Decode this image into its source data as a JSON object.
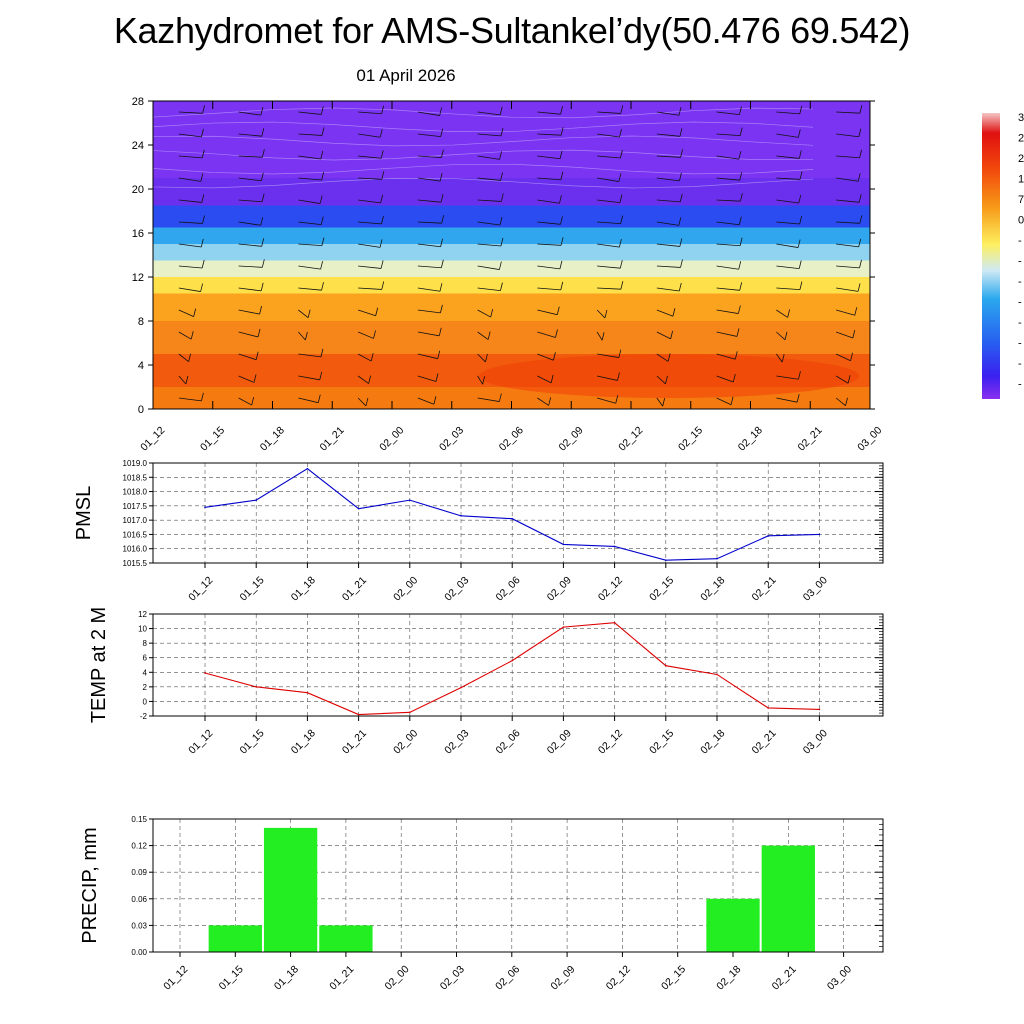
{
  "title": "Kazhydromet for AMS-Sultankel’dy(50.476 69.542)",
  "subtitle": "01 April 2026",
  "time_labels": [
    "01_12",
    "01_15",
    "01_18",
    "01_21",
    "02_00",
    "02_03",
    "02_06",
    "02_09",
    "02_12",
    "02_15",
    "02_18",
    "02_21",
    "03_00"
  ],
  "colors": {
    "pmsl_line": "#0000cc",
    "temp_line": "#dd0000",
    "precip_bar": "#22ee22"
  },
  "chart_data": [
    {
      "type": "heatmap",
      "title": "Vertical profile with wind barbs",
      "xlabel": "",
      "ylabel": "",
      "x": [
        "01_12",
        "01_15",
        "01_18",
        "01_21",
        "02_00",
        "02_03",
        "02_06",
        "02_09",
        "02_12",
        "02_15",
        "02_18",
        "02_21",
        "03_00"
      ],
      "y_ticks": [
        0,
        4,
        8,
        12,
        16,
        20,
        24,
        28
      ],
      "ylim": [
        0,
        28
      ],
      "layers": [
        {
          "from": 0,
          "to": 2,
          "color": "#f57a10"
        },
        {
          "from": 2,
          "to": 5,
          "color": "#f25a0d"
        },
        {
          "from": 5,
          "to": 8,
          "color": "#f7861a"
        },
        {
          "from": 8,
          "to": 10.5,
          "color": "#fba21f"
        },
        {
          "from": 10.5,
          "to": 12,
          "color": "#fde04a"
        },
        {
          "from": 12,
          "to": 13.5,
          "color": "#e8f0c8"
        },
        {
          "from": 13.5,
          "to": 15,
          "color": "#8fd3f0"
        },
        {
          "from": 15,
          "to": 16.5,
          "color": "#2fa6ee"
        },
        {
          "from": 16.5,
          "to": 18.5,
          "color": "#2b4cf0"
        },
        {
          "from": 18.5,
          "to": 21,
          "color": "#6a30ee"
        },
        {
          "from": 21,
          "to": 28,
          "color": "#7b34f2"
        }
      ],
      "colorbar_labels": [
        "3",
        "2",
        "2",
        "1",
        "7",
        "0",
        "-",
        "-",
        "-",
        "-",
        "-",
        "-",
        "-",
        "-"
      ]
    },
    {
      "type": "line",
      "name": "pmsl",
      "title": "",
      "xlabel": "",
      "ylabel": "PMSL",
      "categories": [
        "01_12",
        "01_15",
        "01_18",
        "01_21",
        "02_00",
        "02_03",
        "02_06",
        "02_09",
        "02_12",
        "02_15",
        "02_18",
        "02_21",
        "03_00"
      ],
      "values": [
        1017.45,
        1017.7,
        1018.8,
        1017.4,
        1017.7,
        1017.15,
        1017.05,
        1016.15,
        1016.08,
        1015.6,
        1015.65,
        1016.45,
        1016.5
      ],
      "ylim": [
        1015.5,
        1019.0
      ],
      "y_ticks": [
        "1015.5",
        "1016.0",
        "1016.5",
        "1017.0",
        "1017.5",
        "1018.0",
        "1018.5",
        "1019.0"
      ]
    },
    {
      "type": "line",
      "name": "temp",
      "title": "",
      "xlabel": "",
      "ylabel": "TEMP at 2 M",
      "categories": [
        "01_12",
        "01_15",
        "01_18",
        "01_21",
        "02_00",
        "02_03",
        "02_06",
        "02_09",
        "02_12",
        "02_15",
        "02_18",
        "02_21",
        "03_00"
      ],
      "values": [
        3.9,
        2.0,
        1.2,
        -1.8,
        -1.5,
        1.9,
        5.6,
        10.2,
        10.8,
        4.9,
        3.7,
        -0.9,
        -1.1
      ],
      "ylim": [
        -2,
        12
      ],
      "y_ticks": [
        "-2",
        "0",
        "2",
        "4",
        "6",
        "8",
        "10",
        "12"
      ]
    },
    {
      "type": "bar",
      "name": "precip",
      "title": "",
      "xlabel": "",
      "ylabel": "PRECIP, mm",
      "categories": [
        "01_12",
        "01_15",
        "01_18",
        "01_21",
        "02_00",
        "02_03",
        "02_06",
        "02_09",
        "02_12",
        "02_15",
        "02_18",
        "02_21",
        "03_00"
      ],
      "values": [
        0,
        0.03,
        0.14,
        0.03,
        0,
        0,
        0,
        0,
        0,
        0,
        0.06,
        0.12,
        0
      ],
      "ylim": [
        0,
        0.15
      ],
      "y_ticks": [
        "0.00",
        "0.03",
        "0.06",
        "0.09",
        "0.12",
        "0.15"
      ]
    }
  ]
}
